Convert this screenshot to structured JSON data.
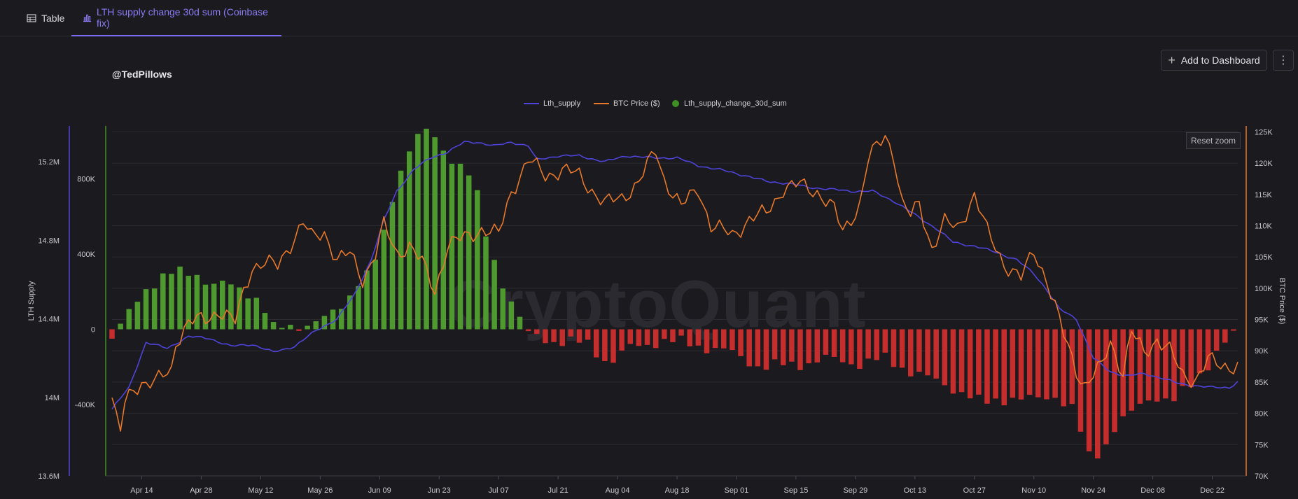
{
  "tabs": [
    {
      "label": "Table",
      "icon": "table-icon"
    },
    {
      "label": "LTH supply change 30d sum (Coinbase fix)",
      "icon": "bar-chart-icon"
    }
  ],
  "handle": "@TedPillows",
  "actions": {
    "add_dashboard": "Add to Dashboard",
    "more_icon": "more-vertical-icon"
  },
  "reset_zoom": "Reset zoom",
  "watermark": "CryptoQuant",
  "colors": {
    "lth_supply": "#4f43d9",
    "btc_price": "#e8782a",
    "change_pos": "#4f9a2f",
    "change_neg": "#c62d2d",
    "accent": "#7c6cf0"
  },
  "chart_data": {
    "type": "bar",
    "ylabel": "LTH Supply",
    "y2label": "BTC Price ($)",
    "legend": [
      "Lth_supply",
      "BTC Price ($)",
      "Lth_supply_change_30d_sum"
    ],
    "legend_position": "top-center",
    "grid": true,
    "x_ticks": [
      "Apr 14",
      "Apr 28",
      "May 12",
      "May 26",
      "Jun 09",
      "Jun 23",
      "Jul 07",
      "Jul 21",
      "Aug 04",
      "Aug 18",
      "Sep 01",
      "Sep 15",
      "Sep 29",
      "Oct 13",
      "Oct 27",
      "Nov 10",
      "Nov 24",
      "Dec 08",
      "Dec 22"
    ],
    "supply_ticks": [
      "13.6M",
      "14M",
      "14.4M",
      "14.8M",
      "15.2M"
    ],
    "change_ticks": [
      "-400K",
      "0",
      "400K",
      "800K"
    ],
    "price_ticks": [
      "70K",
      "75K",
      "80K",
      "85K",
      "90K",
      "95K",
      "100K",
      "105K",
      "110K",
      "115K",
      "120K",
      "125K"
    ],
    "ylim_supply": [
      13.6,
      15.4
    ],
    "ylim_change": [
      -780,
      1100
    ],
    "ylim_price": [
      70,
      126.5
    ],
    "date_range": [
      "2025-04-07",
      "2025-12-28"
    ],
    "series": [
      {
        "name": "Lth_supply",
        "axis": "left",
        "unit": "M",
        "points": [
          [
            "2025-04-07",
            13.94
          ],
          [
            "2025-04-11",
            14.05
          ],
          [
            "2025-04-15",
            14.28
          ],
          [
            "2025-04-20",
            14.25
          ],
          [
            "2025-04-25",
            14.31
          ],
          [
            "2025-04-30",
            14.3
          ],
          [
            "2025-05-05",
            14.26
          ],
          [
            "2025-05-10",
            14.27
          ],
          [
            "2025-05-15",
            14.23
          ],
          [
            "2025-05-20",
            14.26
          ],
          [
            "2025-05-25",
            14.34
          ],
          [
            "2025-05-30",
            14.4
          ],
          [
            "2025-06-03",
            14.52
          ],
          [
            "2025-06-07",
            14.7
          ],
          [
            "2025-06-10",
            14.9
          ],
          [
            "2025-06-13",
            15.05
          ],
          [
            "2025-06-17",
            15.16
          ],
          [
            "2025-06-21",
            15.22
          ],
          [
            "2025-06-25",
            15.25
          ],
          [
            "2025-06-29",
            15.3
          ],
          [
            "2025-07-02",
            15.3
          ],
          [
            "2025-07-06",
            15.28
          ],
          [
            "2025-07-10",
            15.3
          ],
          [
            "2025-07-14",
            15.28
          ],
          [
            "2025-07-16",
            15.21
          ],
          [
            "2025-07-21",
            15.23
          ],
          [
            "2025-07-26",
            15.23
          ],
          [
            "2025-08-01",
            15.2
          ],
          [
            "2025-08-06",
            15.23
          ],
          [
            "2025-08-12",
            15.22
          ],
          [
            "2025-08-18",
            15.22
          ],
          [
            "2025-08-23",
            15.18
          ],
          [
            "2025-08-28",
            15.16
          ],
          [
            "2025-09-03",
            15.13
          ],
          [
            "2025-09-08",
            15.1
          ],
          [
            "2025-09-13",
            15.09
          ],
          [
            "2025-09-18",
            15.07
          ],
          [
            "2025-09-23",
            15.06
          ],
          [
            "2025-09-28",
            15.05
          ],
          [
            "2025-10-03",
            15.05
          ],
          [
            "2025-10-08",
            15.0
          ],
          [
            "2025-10-13",
            14.93
          ],
          [
            "2025-10-18",
            14.86
          ],
          [
            "2025-10-22",
            14.79
          ],
          [
            "2025-10-27",
            14.77
          ],
          [
            "2025-11-01",
            14.74
          ],
          [
            "2025-11-06",
            14.7
          ],
          [
            "2025-11-10",
            14.63
          ],
          [
            "2025-11-13",
            14.55
          ],
          [
            "2025-11-16",
            14.45
          ],
          [
            "2025-11-20",
            14.4
          ],
          [
            "2025-11-24",
            14.2
          ],
          [
            "2025-11-28",
            14.13
          ],
          [
            "2025-12-02",
            14.11
          ],
          [
            "2025-12-06",
            14.12
          ],
          [
            "2025-12-10",
            14.1
          ],
          [
            "2025-12-14",
            14.07
          ],
          [
            "2025-12-18",
            14.06
          ],
          [
            "2025-12-22",
            14.05
          ],
          [
            "2025-12-26",
            14.05
          ],
          [
            "2025-12-28",
            14.08
          ]
        ]
      },
      {
        "name": "BTC Price ($)",
        "axis": "right",
        "unit": "K",
        "points": [
          [
            "2025-04-07",
            82.5
          ],
          [
            "2025-04-08",
            79.0
          ],
          [
            "2025-04-09",
            77.0
          ],
          [
            "2025-04-10",
            81.5
          ],
          [
            "2025-04-12",
            84.0
          ],
          [
            "2025-04-14",
            85.0
          ],
          [
            "2025-04-17",
            84.8
          ],
          [
            "2025-04-21",
            87.0
          ],
          [
            "2025-04-22",
            91.5
          ],
          [
            "2025-04-25",
            94.5
          ],
          [
            "2025-04-29",
            95.0
          ],
          [
            "2025-05-02",
            96.5
          ],
          [
            "2025-05-06",
            94.5
          ],
          [
            "2025-05-08",
            99.5
          ],
          [
            "2025-05-10",
            103.5
          ],
          [
            "2025-05-13",
            104.0
          ],
          [
            "2025-05-16",
            103.5
          ],
          [
            "2025-05-18",
            106.0
          ],
          [
            "2025-05-22",
            110.5
          ],
          [
            "2025-05-24",
            108.0
          ],
          [
            "2025-05-27",
            109.0
          ],
          [
            "2025-05-30",
            104.5
          ],
          [
            "2025-06-02",
            105.5
          ],
          [
            "2025-06-05",
            101.5
          ],
          [
            "2025-06-08",
            105.5
          ],
          [
            "2025-06-10",
            110.0
          ],
          [
            "2025-06-13",
            105.5
          ],
          [
            "2025-06-16",
            107.0
          ],
          [
            "2025-06-19",
            104.0
          ],
          [
            "2025-06-22",
            99.5
          ],
          [
            "2025-06-25",
            107.0
          ],
          [
            "2025-06-29",
            108.0
          ],
          [
            "2025-07-03",
            109.5
          ],
          [
            "2025-07-07",
            108.5
          ],
          [
            "2025-07-10",
            115.5
          ],
          [
            "2025-07-14",
            120.5
          ],
          [
            "2025-07-18",
            118.0
          ],
          [
            "2025-07-22",
            119.0
          ],
          [
            "2025-07-26",
            118.0
          ],
          [
            "2025-08-01",
            113.5
          ],
          [
            "2025-08-05",
            114.5
          ],
          [
            "2025-08-09",
            117.0
          ],
          [
            "2025-08-13",
            122.0
          ],
          [
            "2025-08-15",
            117.5
          ],
          [
            "2025-08-19",
            113.0
          ],
          [
            "2025-08-23",
            116.0
          ],
          [
            "2025-08-26",
            110.0
          ],
          [
            "2025-08-31",
            108.5
          ],
          [
            "2025-09-04",
            111.0
          ],
          [
            "2025-09-08",
            112.0
          ],
          [
            "2025-09-12",
            116.0
          ],
          [
            "2025-09-16",
            116.5
          ],
          [
            "2025-09-20",
            115.5
          ],
          [
            "2025-09-24",
            112.5
          ],
          [
            "2025-09-26",
            109.0
          ],
          [
            "2025-09-30",
            113.5
          ],
          [
            "2025-10-02",
            120.5
          ],
          [
            "2025-10-06",
            124.5
          ],
          [
            "2025-10-08",
            121.5
          ],
          [
            "2025-10-10",
            113.5
          ],
          [
            "2025-10-12",
            111.5
          ],
          [
            "2025-10-14",
            113.5
          ],
          [
            "2025-10-17",
            106.5
          ],
          [
            "2025-10-20",
            110.5
          ],
          [
            "2025-10-23",
            109.5
          ],
          [
            "2025-10-27",
            115.0
          ],
          [
            "2025-10-30",
            109.0
          ],
          [
            "2025-11-03",
            104.0
          ],
          [
            "2025-11-07",
            101.5
          ],
          [
            "2025-11-10",
            106.0
          ],
          [
            "2025-11-13",
            101.5
          ],
          [
            "2025-11-17",
            92.5
          ],
          [
            "2025-11-20",
            87.0
          ],
          [
            "2025-11-22",
            84.5
          ],
          [
            "2025-11-26",
            87.5
          ],
          [
            "2025-11-28",
            91.5
          ],
          [
            "2025-12-01",
            86.5
          ],
          [
            "2025-12-03",
            93.0
          ],
          [
            "2025-12-06",
            89.5
          ],
          [
            "2025-12-09",
            92.0
          ],
          [
            "2025-12-12",
            90.0
          ],
          [
            "2025-12-15",
            86.0
          ],
          [
            "2025-12-18",
            85.5
          ],
          [
            "2025-12-21",
            88.5
          ],
          [
            "2025-12-24",
            87.5
          ],
          [
            "2025-12-28",
            87.8
          ]
        ]
      },
      {
        "name": "Lth_supply_change_30d_sum",
        "axis": "left-inner",
        "unit": "K",
        "points": [
          [
            "2025-04-07",
            -50
          ],
          [
            "2025-04-11",
            80
          ],
          [
            "2025-04-14",
            200
          ],
          [
            "2025-04-18",
            270
          ],
          [
            "2025-04-22",
            300
          ],
          [
            "2025-04-27",
            300
          ],
          [
            "2025-04-30",
            240
          ],
          [
            "2025-05-05",
            230
          ],
          [
            "2025-05-09",
            200
          ],
          [
            "2025-05-12",
            150
          ],
          [
            "2025-05-15",
            0
          ],
          [
            "2025-05-20",
            20
          ],
          [
            "2025-05-24",
            30
          ],
          [
            "2025-05-28",
            60
          ],
          [
            "2025-06-01",
            150
          ],
          [
            "2025-06-04",
            260
          ],
          [
            "2025-06-07",
            300
          ],
          [
            "2025-06-10",
            500
          ],
          [
            "2025-06-13",
            800
          ],
          [
            "2025-06-17",
            1020
          ],
          [
            "2025-06-21",
            1050
          ],
          [
            "2025-06-24",
            950
          ],
          [
            "2025-06-27",
            900
          ],
          [
            "2025-07-01",
            800
          ],
          [
            "2025-07-04",
            500
          ],
          [
            "2025-07-07",
            300
          ],
          [
            "2025-07-11",
            100
          ],
          [
            "2025-07-14",
            -30
          ],
          [
            "2025-07-20",
            -60
          ],
          [
            "2025-07-28",
            -80
          ],
          [
            "2025-08-02",
            -180
          ],
          [
            "2025-08-07",
            -100
          ],
          [
            "2025-08-14",
            -60
          ],
          [
            "2025-08-22",
            -80
          ],
          [
            "2025-08-30",
            -120
          ],
          [
            "2025-09-07",
            -200
          ],
          [
            "2025-09-14",
            -190
          ],
          [
            "2025-09-22",
            -160
          ],
          [
            "2025-09-30",
            -180
          ],
          [
            "2025-10-06",
            -160
          ],
          [
            "2025-10-12",
            -220
          ],
          [
            "2025-10-18",
            -280
          ],
          [
            "2025-10-24",
            -330
          ],
          [
            "2025-10-29",
            -400
          ],
          [
            "2025-11-04",
            -360
          ],
          [
            "2025-11-10",
            -380
          ],
          [
            "2025-11-15",
            -350
          ],
          [
            "2025-11-19",
            -420
          ],
          [
            "2025-11-23",
            -680
          ],
          [
            "2025-11-26",
            -650
          ],
          [
            "2025-11-29",
            -520
          ],
          [
            "2025-12-04",
            -430
          ],
          [
            "2025-12-08",
            -350
          ],
          [
            "2025-12-13",
            -380
          ],
          [
            "2025-12-17",
            -300
          ],
          [
            "2025-12-21",
            -180
          ],
          [
            "2025-12-24",
            -90
          ],
          [
            "2025-12-28",
            -20
          ]
        ]
      }
    ]
  }
}
